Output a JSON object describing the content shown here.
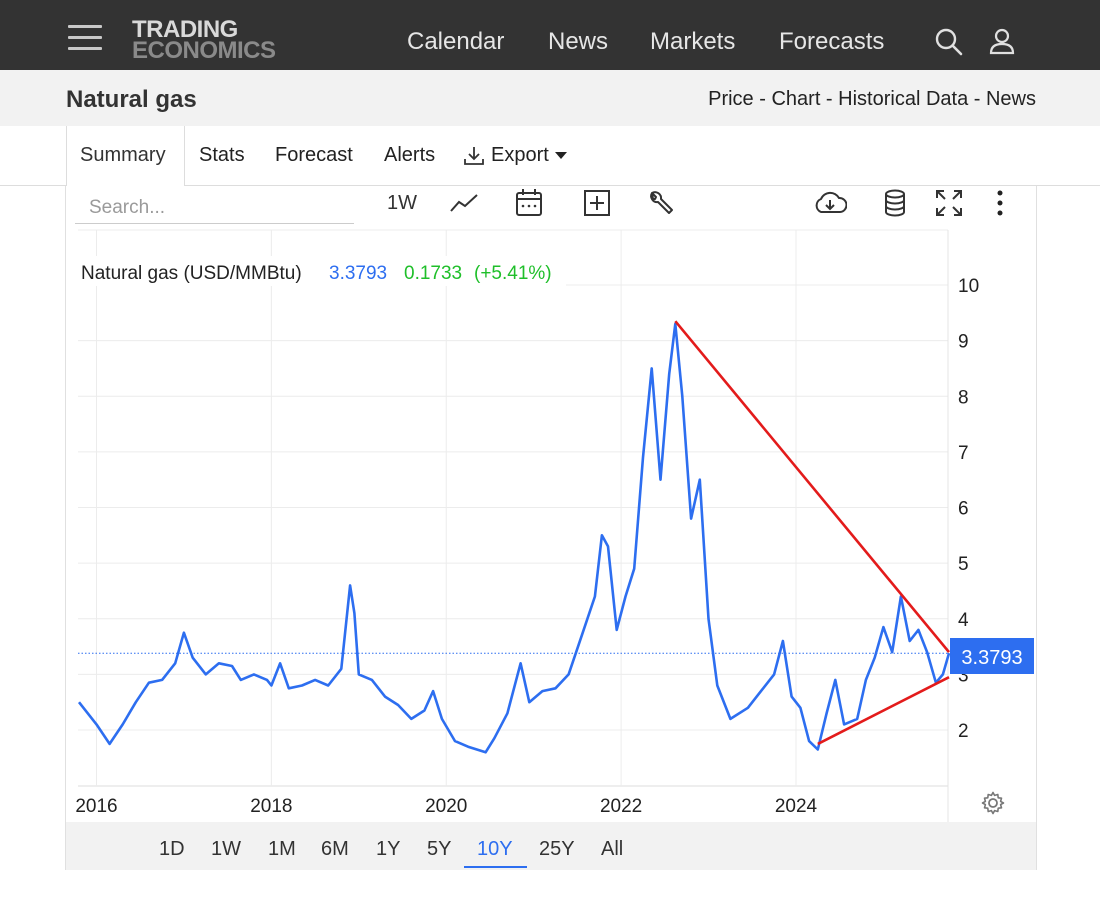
{
  "nav": {
    "logo_line1": "TRADING",
    "logo_line2": "ECONOMICS",
    "links": [
      "Calendar",
      "News",
      "Markets",
      "Forecasts"
    ]
  },
  "header": {
    "title": "Natural gas",
    "breadcrumbs": [
      "Price",
      "Chart",
      "Historical Data",
      "News"
    ],
    "separator": " - "
  },
  "tabs": [
    "Summary",
    "Stats",
    "Forecast",
    "Alerts",
    "Export"
  ],
  "active_tab": "Summary",
  "toolbar": {
    "search_placeholder": "Search...",
    "interval": "1W"
  },
  "chart_legend": {
    "name": "Natural gas (USD/MMBtu)",
    "value": "3.3793",
    "change": "0.1733",
    "change_pct": "(+5.41%)"
  },
  "price_tag": "3.3793",
  "ranges": [
    "1D",
    "1W",
    "1M",
    "6M",
    "1Y",
    "5Y",
    "10Y",
    "25Y",
    "All"
  ],
  "active_range": "10Y",
  "colors": {
    "line": "#2d6ef0",
    "trendline": "#e31b1b",
    "positive": "#1fbf2a",
    "navbar": "#333333"
  },
  "chart_data": {
    "type": "line",
    "title": "",
    "xlabel": "",
    "ylabel": "",
    "ylim": [
      1,
      11
    ],
    "xlim": [
      2015.8,
      2025.75
    ],
    "x_ticks": [
      "2016",
      "2018",
      "2020",
      "2022",
      "2024"
    ],
    "y_ticks": [
      2,
      3,
      4,
      5,
      6,
      7,
      8,
      9,
      10
    ],
    "grid": true,
    "y_axis_side": "right",
    "last_value": 3.3793,
    "series": [
      {
        "values": [
          [
            2015.8,
            2.5
          ],
          [
            2016.0,
            2.1
          ],
          [
            2016.15,
            1.75
          ],
          [
            2016.3,
            2.1
          ],
          [
            2016.45,
            2.5
          ],
          [
            2016.6,
            2.85
          ],
          [
            2016.75,
            2.9
          ],
          [
            2016.9,
            3.2
          ],
          [
            2017.0,
            3.75
          ],
          [
            2017.1,
            3.3
          ],
          [
            2017.25,
            3.0
          ],
          [
            2017.4,
            3.2
          ],
          [
            2017.55,
            3.15
          ],
          [
            2017.65,
            2.9
          ],
          [
            2017.8,
            3.0
          ],
          [
            2017.95,
            2.9
          ],
          [
            2018.0,
            2.8
          ],
          [
            2018.1,
            3.2
          ],
          [
            2018.2,
            2.75
          ],
          [
            2018.35,
            2.8
          ],
          [
            2018.5,
            2.9
          ],
          [
            2018.65,
            2.8
          ],
          [
            2018.8,
            3.1
          ],
          [
            2018.9,
            4.6
          ],
          [
            2018.95,
            4.1
          ],
          [
            2019.0,
            3.0
          ],
          [
            2019.15,
            2.9
          ],
          [
            2019.3,
            2.6
          ],
          [
            2019.45,
            2.45
          ],
          [
            2019.6,
            2.2
          ],
          [
            2019.75,
            2.35
          ],
          [
            2019.85,
            2.7
          ],
          [
            2019.95,
            2.2
          ],
          [
            2020.1,
            1.8
          ],
          [
            2020.25,
            1.7
          ],
          [
            2020.45,
            1.6
          ],
          [
            2020.55,
            1.85
          ],
          [
            2020.7,
            2.3
          ],
          [
            2020.85,
            3.2
          ],
          [
            2020.95,
            2.5
          ],
          [
            2021.1,
            2.7
          ],
          [
            2021.25,
            2.75
          ],
          [
            2021.4,
            3.0
          ],
          [
            2021.55,
            3.7
          ],
          [
            2021.7,
            4.4
          ],
          [
            2021.78,
            5.5
          ],
          [
            2021.85,
            5.3
          ],
          [
            2021.95,
            3.8
          ],
          [
            2022.05,
            4.4
          ],
          [
            2022.15,
            4.9
          ],
          [
            2022.25,
            6.9
          ],
          [
            2022.35,
            8.5
          ],
          [
            2022.45,
            6.5
          ],
          [
            2022.55,
            8.4
          ],
          [
            2022.62,
            9.3
          ],
          [
            2022.7,
            8.0
          ],
          [
            2022.8,
            5.8
          ],
          [
            2022.9,
            6.5
          ],
          [
            2023.0,
            4.0
          ],
          [
            2023.1,
            2.8
          ],
          [
            2023.25,
            2.2
          ],
          [
            2023.45,
            2.4
          ],
          [
            2023.6,
            2.7
          ],
          [
            2023.75,
            3.0
          ],
          [
            2023.85,
            3.6
          ],
          [
            2023.95,
            2.6
          ],
          [
            2024.05,
            2.4
          ],
          [
            2024.15,
            1.8
          ],
          [
            2024.25,
            1.65
          ],
          [
            2024.35,
            2.3
          ],
          [
            2024.45,
            2.9
          ],
          [
            2024.55,
            2.1
          ],
          [
            2024.7,
            2.2
          ],
          [
            2024.8,
            2.9
          ],
          [
            2024.9,
            3.3
          ],
          [
            2025.0,
            3.85
          ],
          [
            2025.1,
            3.4
          ],
          [
            2025.2,
            4.4
          ],
          [
            2025.3,
            3.6
          ],
          [
            2025.4,
            3.8
          ],
          [
            2025.5,
            3.4
          ],
          [
            2025.6,
            2.85
          ],
          [
            2025.68,
            3.0
          ],
          [
            2025.75,
            3.38
          ]
        ]
      }
    ],
    "trendlines": [
      {
        "from": [
          2022.62,
          9.35
        ],
        "to": [
          2025.75,
          3.4
        ]
      },
      {
        "from": [
          2024.25,
          1.75
        ],
        "to": [
          2025.75,
          2.95
        ]
      }
    ]
  }
}
